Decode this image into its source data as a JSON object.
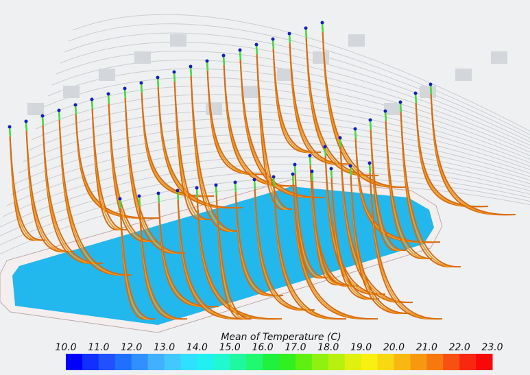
{
  "colorbar": {
    "title": "Mean of Temperature (C)",
    "range": [
      10,
      23
    ],
    "ticks": [
      {
        "value": 10,
        "label": "10.0"
      },
      {
        "value": 11,
        "label": "11.0"
      },
      {
        "value": 12,
        "label": "12.0"
      },
      {
        "value": 13,
        "label": "13.0"
      },
      {
        "value": 14,
        "label": "14.0"
      },
      {
        "value": 15,
        "label": "15.0"
      },
      {
        "value": 16,
        "label": "16.0"
      },
      {
        "value": 17,
        "label": "17.0"
      },
      {
        "value": 18,
        "label": "18.0"
      },
      {
        "value": 19,
        "label": "19.0"
      },
      {
        "value": 20,
        "label": "20.0"
      },
      {
        "value": 21,
        "label": "21.0"
      },
      {
        "value": 22,
        "label": "22.0"
      },
      {
        "value": 23,
        "label": "23.0"
      }
    ],
    "colors": [
      "#0000ff",
      "#1030ff",
      "#2050ff",
      "#2070ff",
      "#3090ff",
      "#40b0ff",
      "#40c8ff",
      "#30e0ff",
      "#20f0f0",
      "#20f8d0",
      "#20f8a0",
      "#20f870",
      "#20f040",
      "#30f020",
      "#60f010",
      "#90f010",
      "#b8f010",
      "#e0f010",
      "#f8f010",
      "#f8d810",
      "#f8b810",
      "#f89810",
      "#f87810",
      "#f85010",
      "#f82810",
      "#f80808"
    ]
  }
}
